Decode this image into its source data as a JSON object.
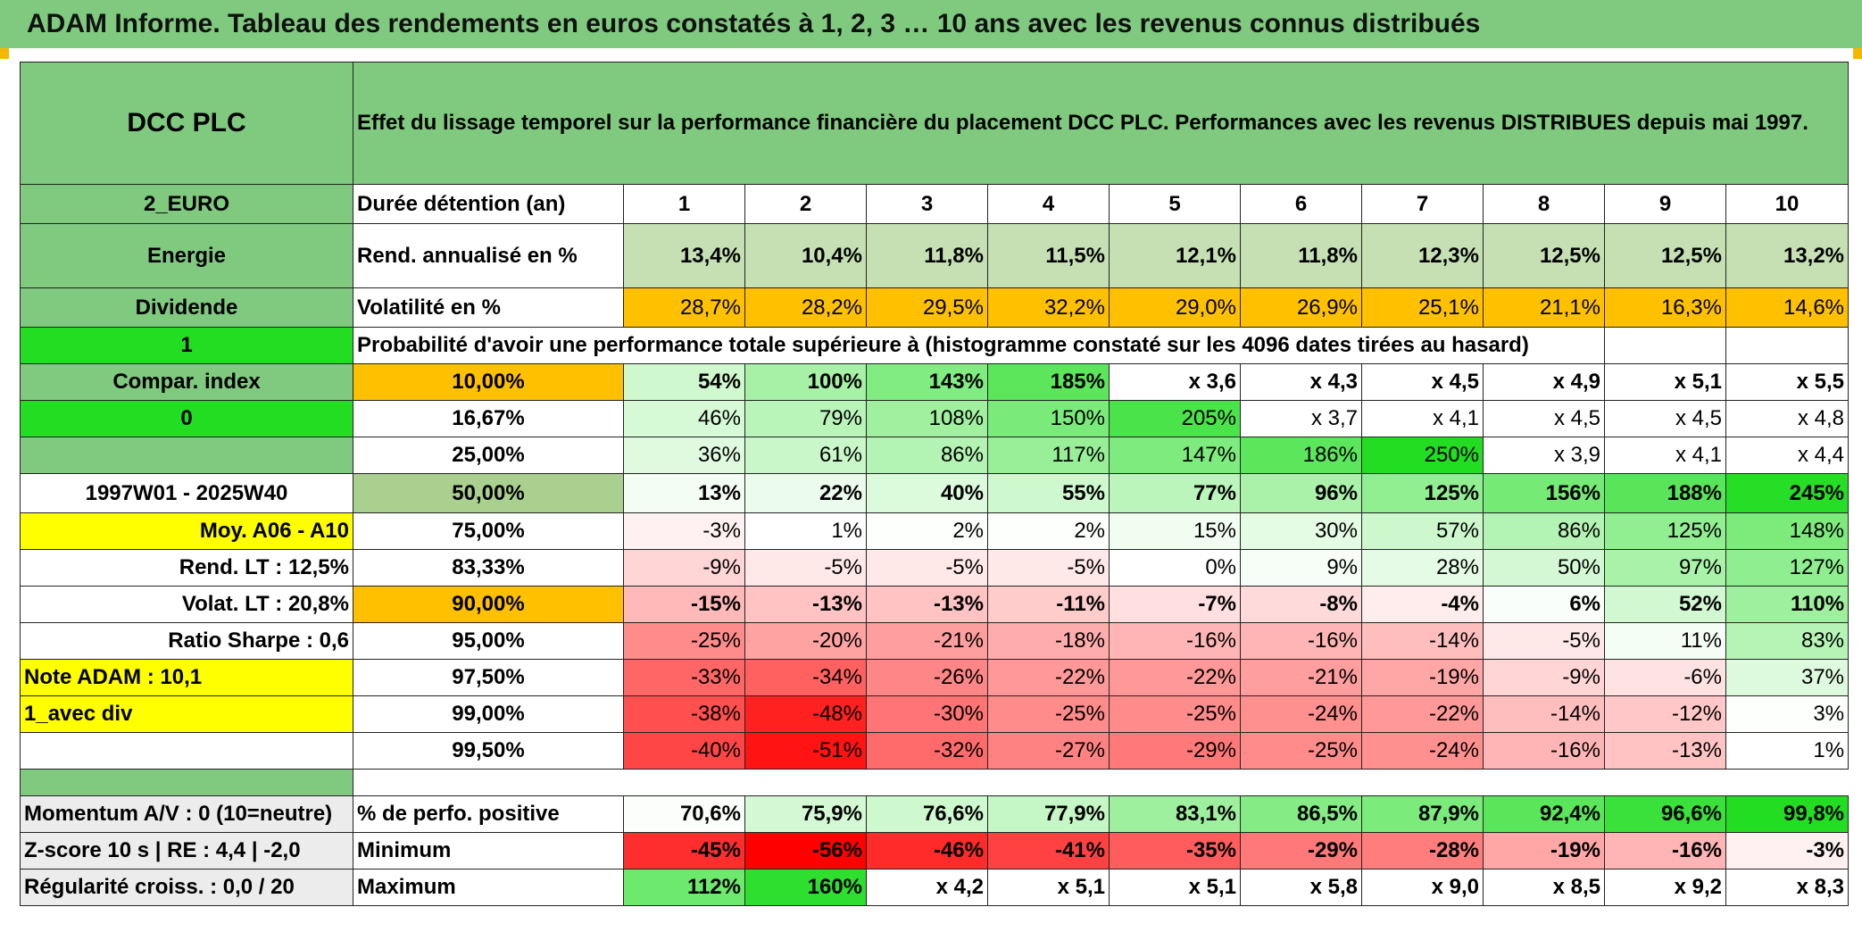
{
  "report_title": "ADAM Informe. Tableau des rendements en euros constatés à 1, 2, 3 … 10 ans avec les revenus connus distribués",
  "header": {
    "fund_name": "DCC PLC",
    "description": "Effet du lissage temporel sur la performance financière du placement DCC PLC. Performances avec les revenus DISTRIBUES depuis mai 1997."
  },
  "info": {
    "currency_code": "2_EURO",
    "sector": "Energie",
    "dividend_label": "Dividende",
    "flag_one": "1",
    "compar_index": "Compar. index",
    "flag_zero": "0",
    "period": "1997W01 - 2025W40",
    "avg_label": "Moy. A06 - A10",
    "rend_lt": "Rend. LT :    12,5%",
    "volat_lt": "Volat. LT :    20,8%",
    "sharpe": "Ratio Sharpe :    0,6",
    "note_adam": "Note ADAM : 10,1",
    "div_mode": "1_avec div"
  },
  "rows": {
    "duration_label": "Durée détention (an)",
    "years": [
      "1",
      "2",
      "3",
      "4",
      "5",
      "6",
      "7",
      "8",
      "9",
      "10"
    ],
    "rend_label": "Rend. annualisé en %",
    "rend_values": [
      "13,4%",
      "10,4%",
      "11,8%",
      "11,5%",
      "12,1%",
      "11,8%",
      "12,3%",
      "12,5%",
      "12,5%",
      "13,2%"
    ],
    "vol_label": "Volatilité en %",
    "vol_values": [
      "28,7%",
      "28,2%",
      "29,5%",
      "32,2%",
      "29,0%",
      "26,9%",
      "25,1%",
      "21,1%",
      "16,3%",
      "14,6%"
    ],
    "prob_header": "Probabilité d'avoir une performance totale supérieure à (histogramme constaté sur les 4096 dates tirées au hasard)"
  },
  "percentiles": [
    {
      "label": "10,00%",
      "values": [
        "54%",
        "100%",
        "143%",
        "185%",
        "x 3,6",
        "x 4,3",
        "x 4,5",
        "x 4,9",
        "x 5,1",
        "x 5,5"
      ]
    },
    {
      "label": "16,67%",
      "values": [
        "46%",
        "79%",
        "108%",
        "150%",
        "205%",
        "x 3,7",
        "x 4,1",
        "x 4,5",
        "x 4,5",
        "x 4,8"
      ]
    },
    {
      "label": "25,00%",
      "values": [
        "36%",
        "61%",
        "86%",
        "117%",
        "147%",
        "186%",
        "250%",
        "x 3,9",
        "x 4,1",
        "x 4,4"
      ]
    },
    {
      "label": "50,00%",
      "values": [
        "13%",
        "22%",
        "40%",
        "55%",
        "77%",
        "96%",
        "125%",
        "156%",
        "188%",
        "245%"
      ]
    },
    {
      "label": "75,00%",
      "values": [
        "-3%",
        "1%",
        "2%",
        "2%",
        "15%",
        "30%",
        "57%",
        "86%",
        "125%",
        "148%"
      ]
    },
    {
      "label": "83,33%",
      "values": [
        "-9%",
        "-5%",
        "-5%",
        "-5%",
        "0%",
        "9%",
        "28%",
        "50%",
        "97%",
        "127%"
      ]
    },
    {
      "label": "90,00%",
      "values": [
        "-15%",
        "-13%",
        "-13%",
        "-11%",
        "-7%",
        "-8%",
        "-4%",
        "6%",
        "52%",
        "110%"
      ]
    },
    {
      "label": "95,00%",
      "values": [
        "-25%",
        "-20%",
        "-21%",
        "-18%",
        "-16%",
        "-16%",
        "-14%",
        "-5%",
        "11%",
        "83%"
      ]
    },
    {
      "label": "97,50%",
      "values": [
        "-33%",
        "-34%",
        "-26%",
        "-22%",
        "-22%",
        "-21%",
        "-19%",
        "-9%",
        "-6%",
        "37%"
      ]
    },
    {
      "label": "99,00%",
      "values": [
        "-38%",
        "-48%",
        "-30%",
        "-25%",
        "-25%",
        "-24%",
        "-22%",
        "-14%",
        "-12%",
        "3%"
      ]
    },
    {
      "label": "99,50%",
      "values": [
        "-40%",
        "-51%",
        "-32%",
        "-27%",
        "-29%",
        "-25%",
        "-24%",
        "-16%",
        "-13%",
        "1%"
      ]
    }
  ],
  "summary": [
    {
      "side": "Momentum A/V : 0 (10=neutre)",
      "label": "% de perfo. positive",
      "values": [
        "70,6%",
        "75,9%",
        "76,6%",
        "77,9%",
        "83,1%",
        "86,5%",
        "87,9%",
        "92,4%",
        "96,6%",
        "99,8%"
      ]
    },
    {
      "side": "Z-score 10 s | RE : 4,4 | -2,0",
      "label": "Minimum",
      "values": [
        "-45%",
        "-56%",
        "-46%",
        "-41%",
        "-35%",
        "-29%",
        "-28%",
        "-19%",
        "-16%",
        "-3%"
      ]
    },
    {
      "side": "Régularité croiss. : 0,0 / 20",
      "label": "Maximum",
      "values": [
        "112%",
        "160%",
        "x 4,2",
        "x 5,1",
        "x 5,1",
        "x 5,8",
        "x 9,0",
        "x 8,5",
        "x 9,2",
        "x 8,3"
      ]
    }
  ],
  "colors": {
    "header_green": "#7fca7f",
    "bright_green": "#22dd22",
    "highlight_yellow": "#ffff00",
    "highlight_orange": "#ffc000",
    "label_red": "#cc1111"
  }
}
